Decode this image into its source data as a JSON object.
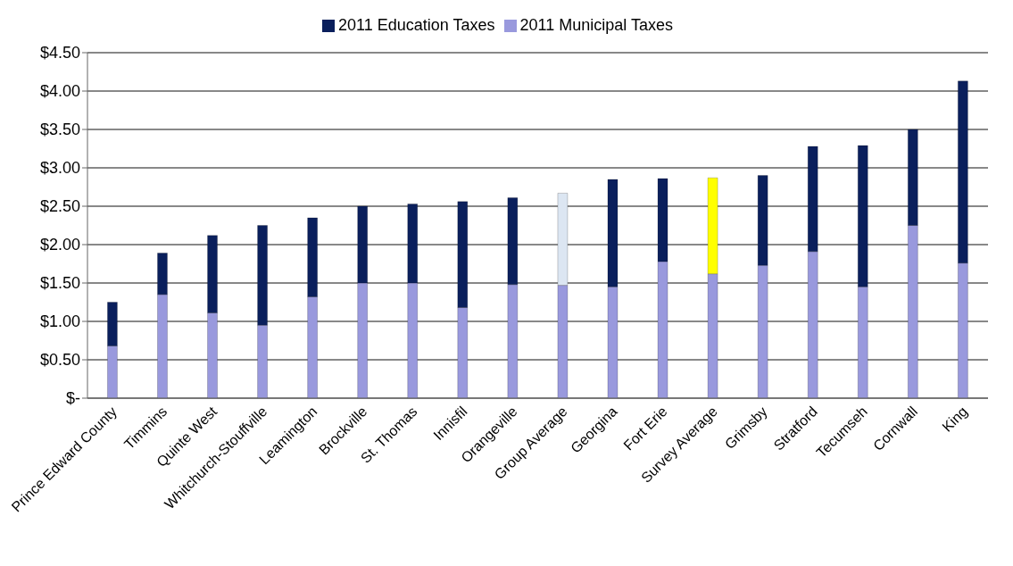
{
  "chart_data": {
    "type": "bar",
    "stacked": true,
    "categories": [
      "Prince Edward County",
      "Timmins",
      "Quinte West",
      "Whitchurch-Stouffville",
      "Leamington",
      "Brockville",
      "St. Thomas",
      "Innisfil",
      "Orangeville",
      "Group Average",
      "Georgina",
      "Fort Erie",
      "Survey Average",
      "Grimsby",
      "Stratford",
      "Tecumseh",
      "Cornwall",
      "King"
    ],
    "series": [
      {
        "name": "2011 Municipal Taxes",
        "color": "#9999dd",
        "values": [
          0.68,
          1.35,
          1.11,
          0.95,
          1.32,
          1.5,
          1.5,
          1.18,
          1.48,
          1.47,
          1.45,
          1.78,
          1.62,
          1.73,
          1.91,
          1.45,
          2.25,
          1.76
        ]
      },
      {
        "name": "2011 Education Taxes",
        "color": "#0a1f5c",
        "colors": [
          "#0a1f5c",
          "#0a1f5c",
          "#0a1f5c",
          "#0a1f5c",
          "#0a1f5c",
          "#0a1f5c",
          "#0a1f5c",
          "#0a1f5c",
          "#0a1f5c",
          "#dce6f2",
          "#0a1f5c",
          "#0a1f5c",
          "#ffff00",
          "#0a1f5c",
          "#0a1f5c",
          "#0a1f5c",
          "#0a1f5c",
          "#0a1f5c"
        ],
        "values": [
          0.57,
          0.54,
          1.01,
          1.3,
          1.03,
          1.0,
          1.03,
          1.38,
          1.13,
          1.2,
          1.4,
          1.08,
          1.25,
          1.17,
          1.37,
          1.84,
          1.25,
          2.37
        ]
      }
    ],
    "ylim": [
      0,
      4.5
    ],
    "yticks": [
      {
        "value": 0,
        "label": "$-"
      },
      {
        "value": 0.5,
        "label": "$0.50"
      },
      {
        "value": 1,
        "label": "$1.00"
      },
      {
        "value": 1.5,
        "label": "$1.50"
      },
      {
        "value": 2,
        "label": "$2.00"
      },
      {
        "value": 2.5,
        "label": "$2.50"
      },
      {
        "value": 3,
        "label": "$3.00"
      },
      {
        "value": 3.5,
        "label": "$3.50"
      },
      {
        "value": 4,
        "label": "$4.00"
      },
      {
        "value": 4.5,
        "label": "$4.50"
      }
    ],
    "grid": "y",
    "legend": "top"
  }
}
